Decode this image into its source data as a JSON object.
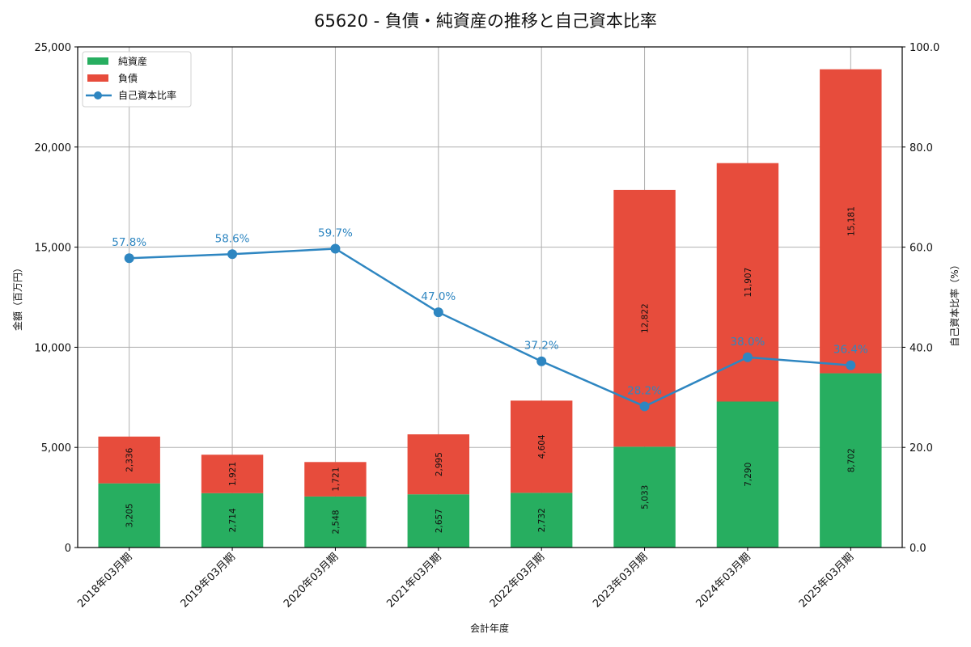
{
  "chart_data": {
    "type": "bar",
    "subtype": "stacked_bar_with_line_secondary_axis",
    "title": "65620 - 負債・純資産の推移と自己資本比率",
    "xlabel": "会計年度",
    "ylabel": "金額（百万円）",
    "y2label": "自己資本比率（%）",
    "ylim": [
      0,
      25000
    ],
    "y2lim": [
      0,
      100
    ],
    "yticks": [
      "0",
      "5,000",
      "10,000",
      "15,000",
      "20,000",
      "25,000"
    ],
    "y2ticks": [
      "0.0",
      "20.0",
      "40.0",
      "60.0",
      "80.0",
      "100.0"
    ],
    "grid": true,
    "legend_position": "upper left",
    "categories": [
      "2018年03月期",
      "2019年03月期",
      "2020年03月期",
      "2021年03月期",
      "2022年03月期",
      "2023年03月期",
      "2024年03月期",
      "2025年03月期"
    ],
    "series": [
      {
        "name": "純資産",
        "type": "bar",
        "color": "#27ae60",
        "values": [
          3205,
          2714,
          2548,
          2657,
          2732,
          5033,
          7290,
          8702
        ],
        "labels": [
          "3,205",
          "2,714",
          "2,548",
          "2,657",
          "2,732",
          "5,033",
          "7,290",
          "8,702"
        ]
      },
      {
        "name": "負債",
        "type": "bar",
        "color": "#e74c3c",
        "values": [
          2336,
          1921,
          1721,
          2995,
          4604,
          12822,
          11907,
          15181
        ],
        "labels": [
          "2,336",
          "1,921",
          "1,721",
          "2,995",
          "4,604",
          "12,822",
          "11,907",
          "15,181"
        ]
      },
      {
        "name": "自己資本比率",
        "type": "line",
        "axis": "right",
        "color": "#2e86c1",
        "values": [
          57.8,
          58.6,
          59.7,
          47.0,
          37.2,
          28.2,
          38.0,
          36.4
        ],
        "labels": [
          "57.8%",
          "58.6%",
          "59.7%",
          "47.0%",
          "37.2%",
          "28.2%",
          "38.0%",
          "36.4%"
        ]
      }
    ]
  }
}
